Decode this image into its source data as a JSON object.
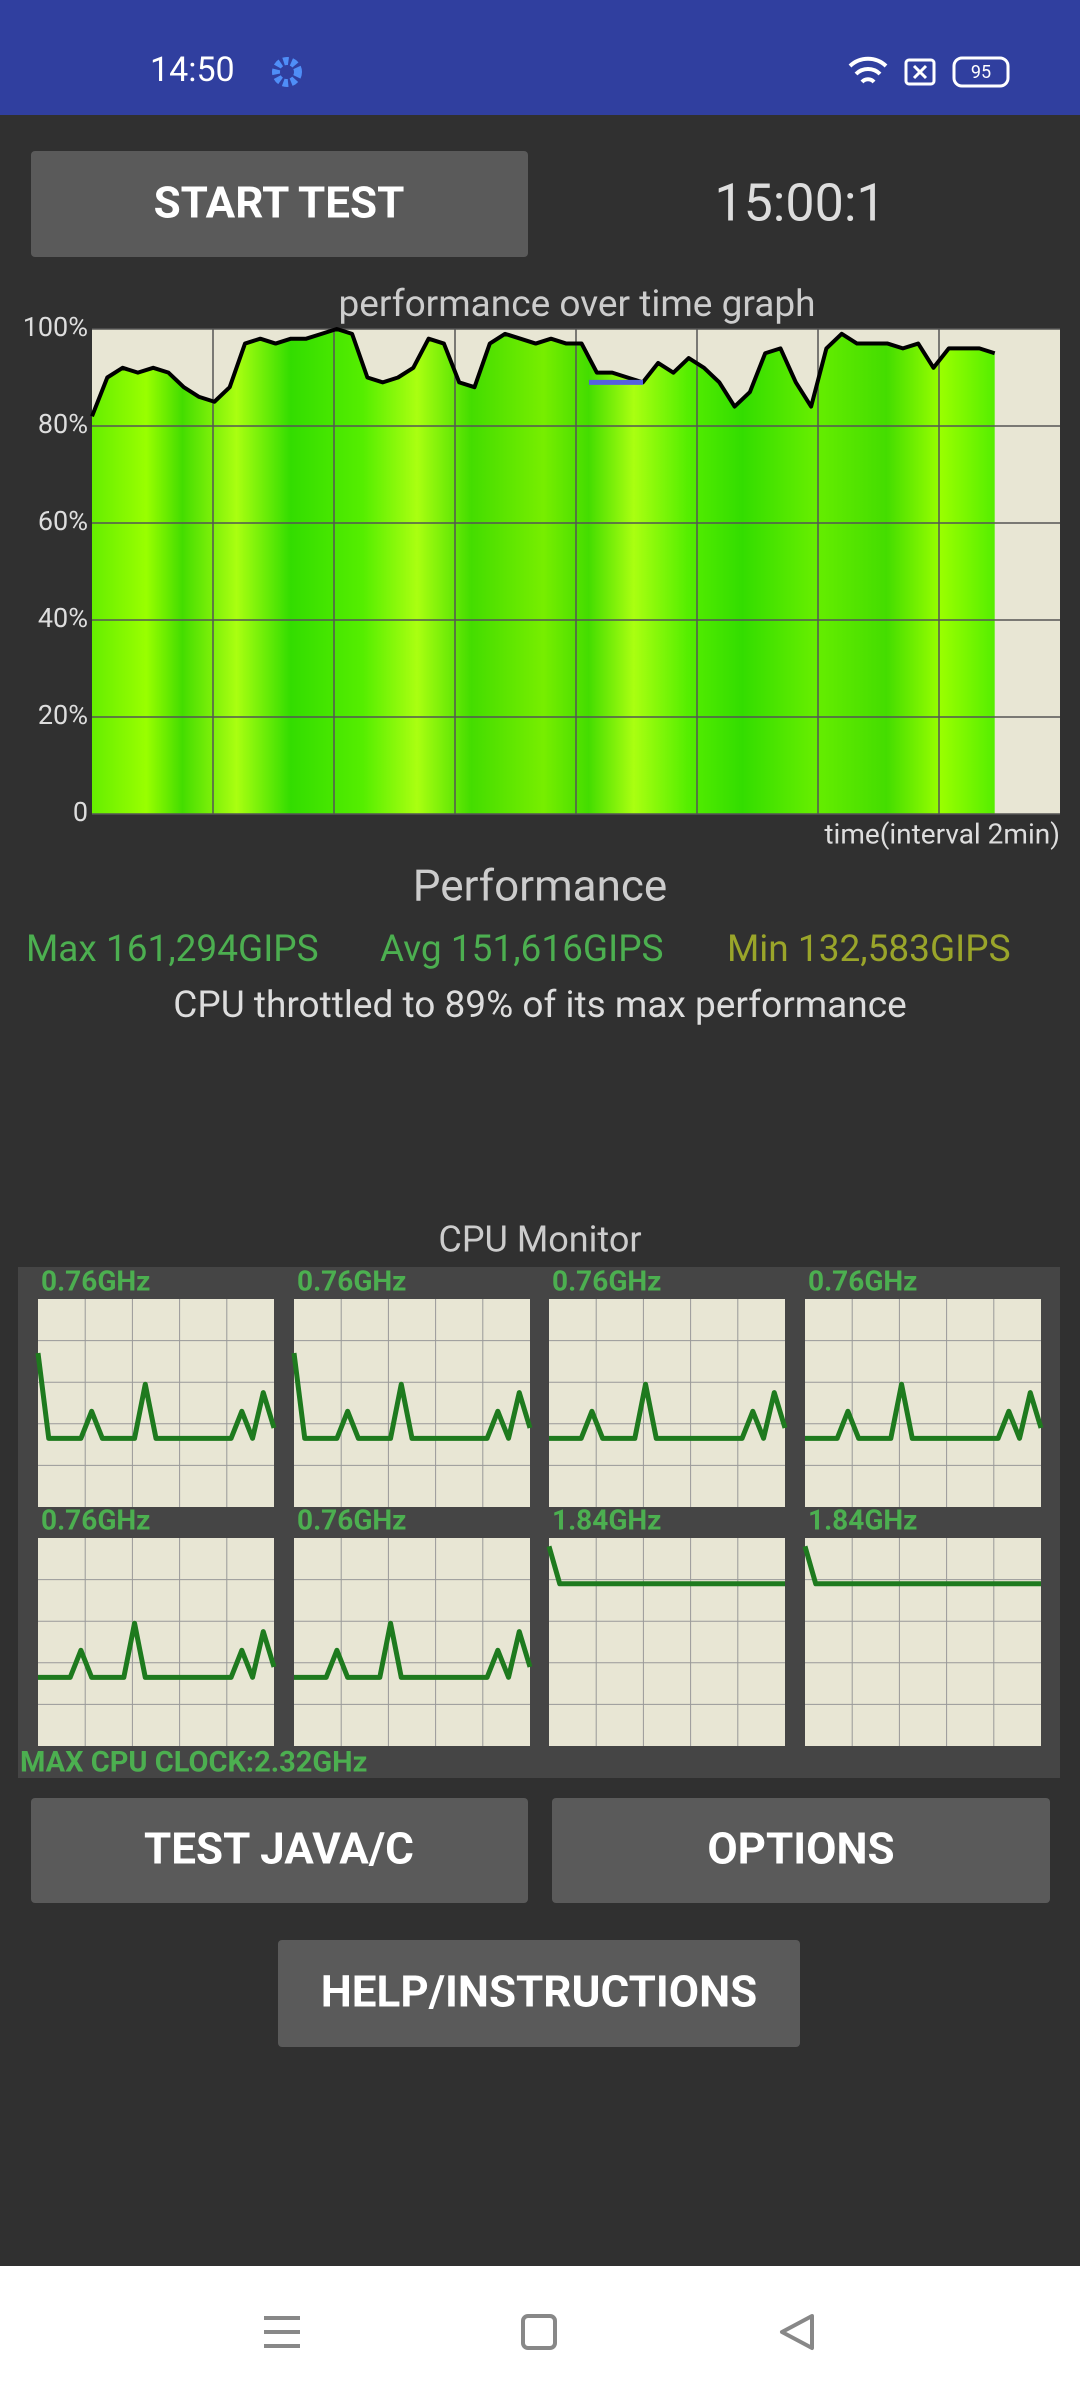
{
  "status_bar": {
    "time": "14:50",
    "battery": "95"
  },
  "start_button": "START TEST",
  "timer": "15:00:1",
  "performance_graph": {
    "type": "line",
    "title": "performance over time graph",
    "x_label": "time(interval 2min)",
    "ylim": [
      0,
      100
    ],
    "yticks": [
      {
        "value": 0,
        "label": "0"
      },
      {
        "value": 20,
        "label": "20%"
      },
      {
        "value": 40,
        "label": "40%"
      },
      {
        "value": 60,
        "label": "60%"
      },
      {
        "value": 80,
        "label": "80%"
      },
      {
        "value": 100,
        "label": "100%"
      }
    ],
    "values": [
      82,
      90,
      92,
      91,
      92,
      91,
      88,
      86,
      85,
      88,
      97,
      98,
      97,
      98,
      98,
      99,
      100,
      99,
      90,
      89,
      90,
      92,
      98,
      97,
      89,
      88,
      97,
      99,
      98,
      97,
      98,
      97,
      97,
      91,
      91,
      90,
      89,
      93,
      91,
      94,
      92,
      89,
      84,
      87,
      95,
      96,
      89,
      84,
      96,
      99,
      97,
      97,
      97,
      96,
      97,
      92,
      96,
      96,
      96,
      95
    ]
  },
  "summary": {
    "title": "Performance",
    "max": "Max 161,294GIPS",
    "avg": "Avg 151,616GIPS",
    "min": "Min 132,583GIPS",
    "throttle_prefix": "CPU throttled to ",
    "throttle": {
      "value": 89,
      "label": "89%"
    },
    "throttle_suffix": " of its max performance"
  },
  "cpu_monitor": {
    "title": "CPU Monitor",
    "max_clock": "MAX CPU CLOCK:2.32GHz",
    "cores": [
      {
        "clock": "0.76GHz",
        "values": [
          74,
          33,
          33,
          33,
          33,
          46,
          33,
          33,
          33,
          33,
          59,
          33,
          33,
          33,
          33,
          33,
          33,
          33,
          33,
          46,
          33,
          55,
          38
        ]
      },
      {
        "clock": "0.76GHz",
        "values": [
          74,
          33,
          33,
          33,
          33,
          46,
          33,
          33,
          33,
          33,
          59,
          33,
          33,
          33,
          33,
          33,
          33,
          33,
          33,
          46,
          33,
          55,
          38
        ]
      },
      {
        "clock": "0.76GHz",
        "values": [
          33,
          33,
          33,
          33,
          46,
          33,
          33,
          33,
          33,
          59,
          33,
          33,
          33,
          33,
          33,
          33,
          33,
          33,
          33,
          46,
          33,
          55,
          38
        ]
      },
      {
        "clock": "0.76GHz",
        "values": [
          33,
          33,
          33,
          33,
          46,
          33,
          33,
          33,
          33,
          59,
          33,
          33,
          33,
          33,
          33,
          33,
          33,
          33,
          33,
          46,
          33,
          55,
          38
        ]
      },
      {
        "clock": "0.76GHz",
        "values": [
          33,
          33,
          33,
          33,
          46,
          33,
          33,
          33,
          33,
          59,
          33,
          33,
          33,
          33,
          33,
          33,
          33,
          33,
          33,
          46,
          33,
          55,
          38
        ]
      },
      {
        "clock": "0.76GHz",
        "values": [
          33,
          33,
          33,
          33,
          46,
          33,
          33,
          33,
          33,
          59,
          33,
          33,
          33,
          33,
          33,
          33,
          33,
          33,
          33,
          46,
          33,
          55,
          38
        ]
      },
      {
        "clock": "1.84GHz",
        "values": [
          96,
          78,
          78,
          78,
          78,
          78,
          78,
          78,
          78,
          78,
          78,
          78,
          78,
          78,
          78,
          78,
          78,
          78,
          78,
          78,
          78,
          78,
          78
        ]
      },
      {
        "clock": "1.84GHz",
        "values": [
          96,
          78,
          78,
          78,
          78,
          78,
          78,
          78,
          78,
          78,
          78,
          78,
          78,
          78,
          78,
          78,
          78,
          78,
          78,
          78,
          78,
          78,
          78
        ]
      }
    ]
  },
  "buttons": {
    "test": "TEST JAVA/C",
    "options": "OPTIONS",
    "help": "HELP/INSTRUCTIONS"
  }
}
